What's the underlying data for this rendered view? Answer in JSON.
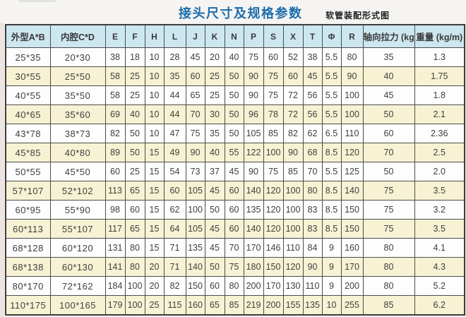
{
  "header": {
    "title": "接头尺寸及规格参数",
    "subtitle": "软管装配形式图"
  },
  "colors": {
    "title_blue": "#1b6dad",
    "header_bg": "#cde7f0",
    "row_alt_bg": "#f6f2d3",
    "row_bg": "#fdfdfd",
    "border": "#4c4c4c"
  },
  "table": {
    "columns": [
      "外型A*B",
      "内腔C*D",
      "E",
      "F",
      "H",
      "L",
      "J",
      "K",
      "N",
      "P",
      "S",
      "X",
      "T",
      "Φ",
      "R",
      "轴向拉力 (kg)",
      "重量 (kg/m)"
    ],
    "rows": [
      [
        "25*35",
        "20*30",
        "38",
        "18",
        "10",
        "28",
        "45",
        "20",
        "40",
        "75",
        "60",
        "52",
        "38",
        "5.5",
        "80",
        "35",
        "1.3"
      ],
      [
        "30*55",
        "25*50",
        "58",
        "25",
        "10",
        "35",
        "60",
        "25",
        "50",
        "90",
        "75",
        "60",
        "45",
        "5.5",
        "90",
        "40",
        "1.75"
      ],
      [
        "40*55",
        "35*50",
        "58",
        "25",
        "10",
        "44",
        "65",
        "25",
        "50",
        "90",
        "75",
        "72",
        "56",
        "5.5",
        "100",
        "45",
        "1.8"
      ],
      [
        "40*65",
        "35*60",
        "69",
        "40",
        "10",
        "44",
        "70",
        "30",
        "50",
        "96",
        "78",
        "72",
        "56",
        "5.5",
        "100",
        "50",
        "2.1"
      ],
      [
        "43*78",
        "38*73",
        "82",
        "50",
        "10",
        "47",
        "75",
        "35",
        "50",
        "105",
        "85",
        "82",
        "62",
        "6.5",
        "110",
        "60",
        "2.36"
      ],
      [
        "45*85",
        "40*80",
        "89",
        "50",
        "15",
        "49",
        "90",
        "40",
        "55",
        "122",
        "100",
        "90",
        "68",
        "8.5",
        "120",
        "70",
        "2.5"
      ],
      [
        "50*55",
        "45*50",
        "60",
        "25",
        "15",
        "54",
        "73",
        "37",
        "45",
        "90",
        "75",
        "85",
        "70",
        "5.5",
        "125",
        "50",
        "2.0"
      ],
      [
        "57*107",
        "52*102",
        "113",
        "65",
        "15",
        "60",
        "105",
        "45",
        "60",
        "140",
        "120",
        "100",
        "80",
        "8.5",
        "140",
        "75",
        "3.5"
      ],
      [
        "60*95",
        "55*90",
        "98",
        "60",
        "15",
        "62",
        "100",
        "50",
        "60",
        "135",
        "120",
        "100",
        "83",
        "8.5",
        "150",
        "75",
        "3.2"
      ],
      [
        "60*113",
        "55*107",
        "117",
        "65",
        "15",
        "64",
        "105",
        "45",
        "60",
        "140",
        "120",
        "100",
        "83",
        "8.5",
        "150",
        "75",
        "3.5"
      ],
      [
        "68*128",
        "60*120",
        "131",
        "80",
        "15",
        "71",
        "135",
        "45",
        "70",
        "170",
        "146",
        "110",
        "84",
        "9",
        "160",
        "80",
        "4.1"
      ],
      [
        "68*138",
        "60*130",
        "141",
        "80",
        "20",
        "71",
        "140",
        "50",
        "75",
        "180",
        "150",
        "120",
        "90",
        "9",
        "170",
        "80",
        "4.3"
      ],
      [
        "80*170",
        "72*162",
        "184",
        "100",
        "20",
        "82",
        "150",
        "60",
        "80",
        "200",
        "170",
        "130",
        "110",
        "9",
        "200",
        "80",
        "5.2"
      ],
      [
        "110*175",
        "100*165",
        "179",
        "100",
        "25",
        "115",
        "160",
        "65",
        "85",
        "219",
        "200",
        "155",
        "135",
        "10",
        "255",
        "85",
        "6.2"
      ]
    ]
  }
}
